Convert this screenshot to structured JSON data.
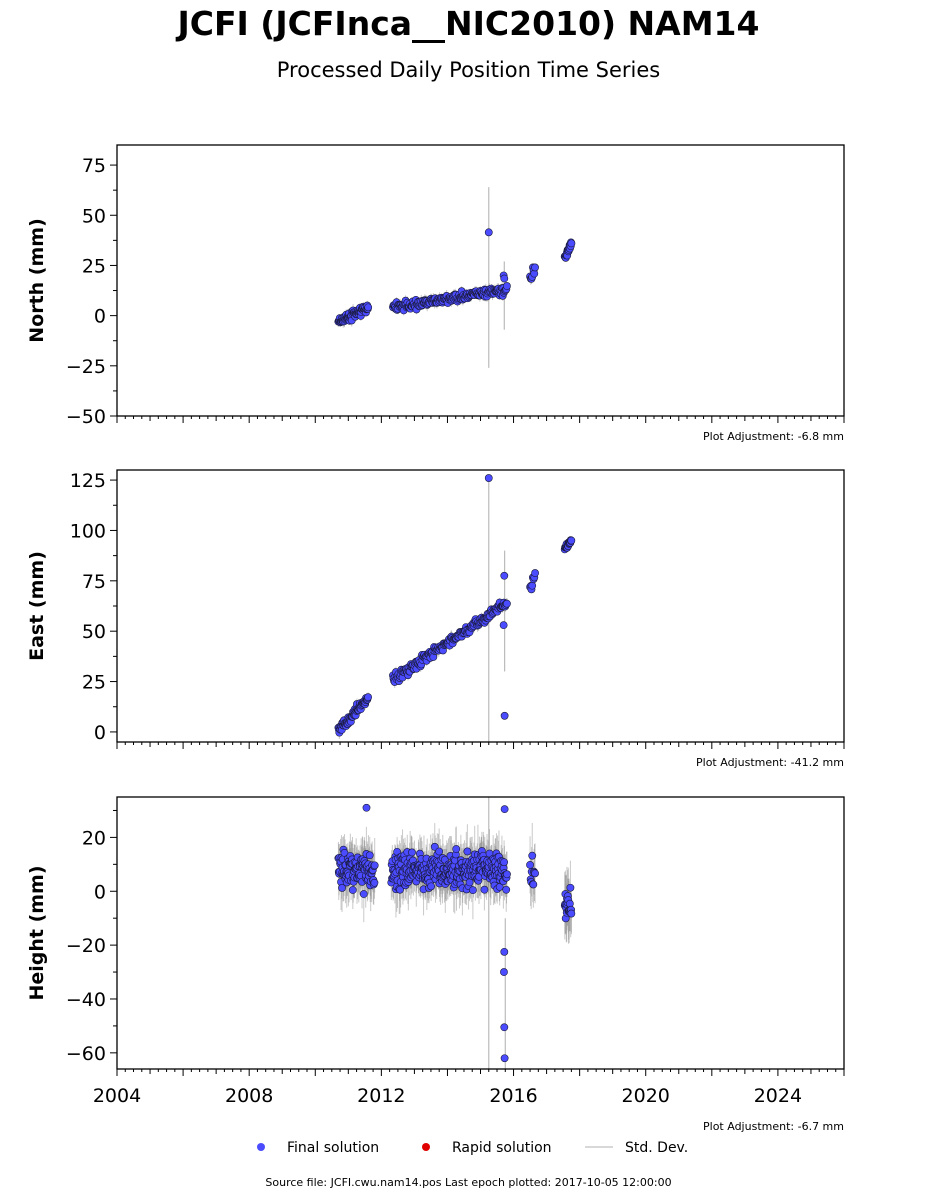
{
  "title": "JCFI (JCFInca__NIC2010) NAM14",
  "subtitle": "Processed Daily Position Time Series",
  "source_text": "Source file: JCFI.cwu.nam14.pos  Last epoch plotted: 2017-10-05 12:00:00",
  "legend": [
    {
      "label": "Final solution",
      "color": "#4b4bff",
      "kind": "marker"
    },
    {
      "label": "Rapid solution",
      "color": "#e00000",
      "kind": "marker"
    },
    {
      "label": "Std. Dev.",
      "color": "#cccccc",
      "kind": "line"
    }
  ],
  "chart_data": [
    {
      "type": "scatter",
      "ylabel": "North (mm)",
      "xlim": [
        2004,
        2026
      ],
      "ylim": [
        -50,
        85
      ],
      "yticks": [
        -50,
        -25,
        0,
        25,
        50,
        75
      ],
      "xticks": [
        2004,
        2008,
        2012,
        2016,
        2020,
        2024
      ],
      "xtick_labels_shown": false,
      "adjustment": "Plot Adjustment: -6.8 mm",
      "segments": [
        {
          "t0": 2010.7,
          "t1": 2011.6,
          "y0": -3,
          "y1": 4,
          "noise": 2.2,
          "n": 70,
          "err": 2
        },
        {
          "t0": 2012.35,
          "t1": 2015.8,
          "y0": 4,
          "y1": 13,
          "noise": 2.3,
          "n": 190,
          "err": 2
        },
        {
          "t0": 2016.5,
          "t1": 2016.65,
          "y0": 18,
          "y1": 24,
          "noise": 3,
          "n": 8,
          "err": 2
        },
        {
          "t0": 2017.55,
          "t1": 2017.75,
          "y0": 29,
          "y1": 36,
          "noise": 2,
          "n": 20,
          "err": 1.5
        }
      ],
      "outliers": [
        [
          2015.25,
          41.5
        ],
        [
          2015.7,
          20
        ],
        [
          2015.72,
          18.5
        ]
      ],
      "big_errors": [
        [
          2015.25,
          19,
          90
        ],
        [
          2015.72,
          10,
          34
        ]
      ]
    },
    {
      "type": "scatter",
      "ylabel": "East (mm)",
      "xlim": [
        2004,
        2026
      ],
      "ylim": [
        -5,
        130
      ],
      "yticks": [
        0,
        25,
        50,
        75,
        100,
        125
      ],
      "xticks": [
        2004,
        2008,
        2012,
        2016,
        2020,
        2024
      ],
      "xtick_labels_shown": false,
      "adjustment": "Plot Adjustment: -41.2 mm",
      "segments": [
        {
          "t0": 2010.7,
          "t1": 2011.6,
          "y0": 0,
          "y1": 17,
          "noise": 2.5,
          "n": 70,
          "err": 2
        },
        {
          "t0": 2012.35,
          "t1": 2015.8,
          "y0": 26,
          "y1": 64,
          "noise": 2.5,
          "n": 190,
          "err": 2
        },
        {
          "t0": 2016.5,
          "t1": 2016.65,
          "y0": 71,
          "y1": 77,
          "noise": 2.5,
          "n": 8,
          "err": 2
        },
        {
          "t0": 2017.55,
          "t1": 2017.75,
          "y0": 91,
          "y1": 95,
          "noise": 1.6,
          "n": 20,
          "err": 1.5
        }
      ],
      "outliers": [
        [
          2015.25,
          126
        ],
        [
          2015.73,
          8
        ],
        [
          2015.72,
          77.5
        ],
        [
          2015.7,
          53
        ]
      ],
      "big_errors": [
        [
          2015.25,
          60,
          130
        ],
        [
          2015.73,
          60,
          60
        ]
      ]
    },
    {
      "type": "scatter",
      "ylabel": "Height (mm)",
      "xlim": [
        2004,
        2026
      ],
      "ylim": [
        -66,
        35
      ],
      "yticks": [
        -60,
        -40,
        -20,
        0,
        20
      ],
      "xticks": [
        2004,
        2008,
        2012,
        2016,
        2020,
        2024
      ],
      "xtick_labels": [
        "2004",
        "2008",
        "2012",
        "2016",
        "2020",
        "2024"
      ],
      "xtick_labels_shown": true,
      "adjustment": "Plot Adjustment: -6.7 mm",
      "segments": [
        {
          "t0": 2010.7,
          "t1": 2011.8,
          "y0": 9,
          "y1": 6,
          "noise": 8,
          "n": 110,
          "err": 7
        },
        {
          "t0": 2012.3,
          "t1": 2015.8,
          "y0": 8,
          "y1": 8,
          "noise": 8,
          "n": 320,
          "err": 7
        },
        {
          "t0": 2016.5,
          "t1": 2016.65,
          "y0": 8,
          "y1": 6,
          "noise": 7,
          "n": 10,
          "err": 8
        },
        {
          "t0": 2017.55,
          "t1": 2017.75,
          "y0": -4,
          "y1": -4,
          "noise": 7,
          "n": 22,
          "err": 8
        }
      ],
      "outliers": [
        [
          2015.73,
          -62
        ],
        [
          2015.72,
          -50.5
        ],
        [
          2015.71,
          -30
        ],
        [
          2015.72,
          -22.5
        ],
        [
          2015.73,
          30.5
        ],
        [
          2011.55,
          31
        ]
      ],
      "big_errors": [
        [
          2015.25,
          -20,
          130
        ],
        [
          2015.75,
          -40,
          60
        ]
      ]
    }
  ]
}
